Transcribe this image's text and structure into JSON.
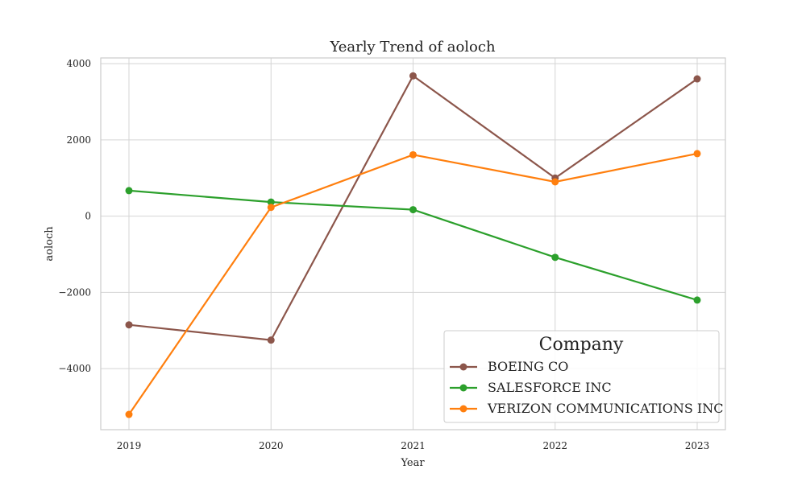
{
  "chart_data": {
    "type": "line",
    "title": "Yearly Trend of aoloch",
    "xlabel": "Year",
    "ylabel": "aoloch",
    "x": [
      "2019",
      "2020",
      "2021",
      "2022",
      "2023"
    ],
    "yticks": [
      4000,
      2000,
      0,
      -2000,
      -4000
    ],
    "ytick_labels": [
      "4000",
      "2000",
      "0",
      "−2000",
      "−4000"
    ],
    "ylim": [
      -5600,
      4150
    ],
    "grid": true,
    "legend": {
      "title": "Company",
      "placement": "bottom-right"
    },
    "series": [
      {
        "name": "BOEING CO",
        "color": "#8c564b",
        "values": [
          -2850,
          -3250,
          3680,
          1000,
          3600
        ]
      },
      {
        "name": "SALESFORCE INC",
        "color": "#2ca02c",
        "values": [
          670,
          370,
          170,
          -1080,
          -2200
        ]
      },
      {
        "name": "VERIZON COMMUNICATIONS INC",
        "color": "#ff7f0e",
        "values": [
          -5200,
          230,
          1610,
          900,
          1640
        ]
      }
    ]
  }
}
